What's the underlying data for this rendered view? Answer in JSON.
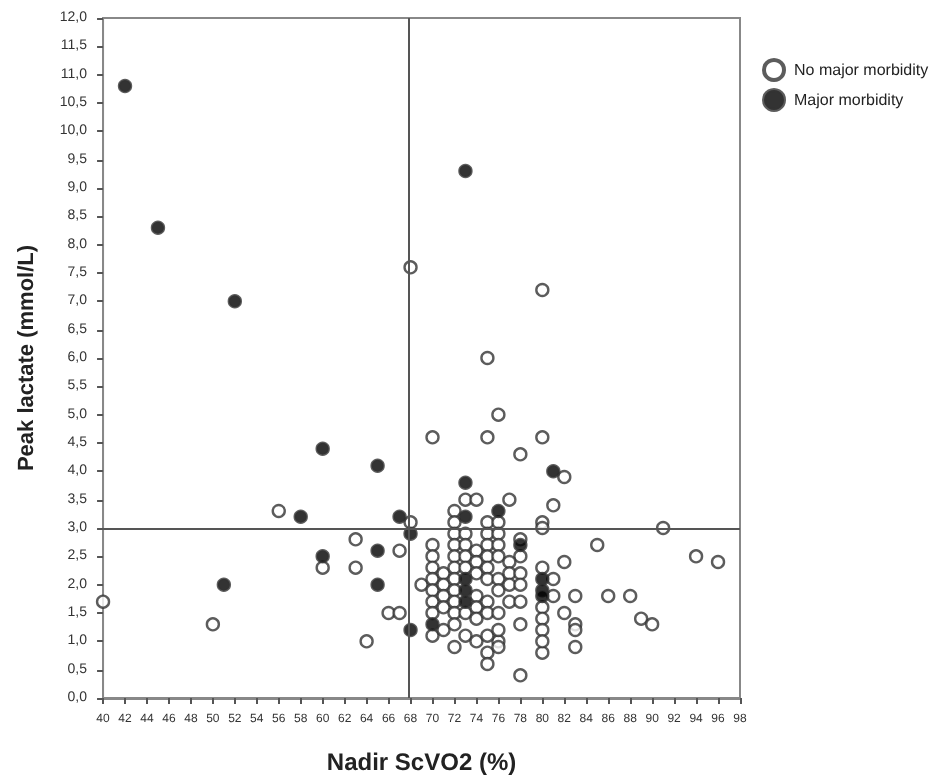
{
  "chart_data": {
    "type": "scatter",
    "xlabel": "Nadir ScVO2 (%)",
    "ylabel": "Peak lactate (mmol/L)",
    "xlim": [
      40,
      98
    ],
    "xticks": [
      40,
      42,
      44,
      46,
      48,
      50,
      52,
      54,
      56,
      58,
      60,
      62,
      64,
      66,
      68,
      70,
      72,
      74,
      76,
      78,
      80,
      82,
      84,
      86,
      88,
      90,
      92,
      94,
      96,
      98
    ],
    "ylim": [
      0,
      12
    ],
    "yticks": [
      {
        "value": 0,
        "label": "0,0"
      },
      {
        "value": 0.5,
        "label": "0,5"
      },
      {
        "value": 1,
        "label": "1,0"
      },
      {
        "value": 1.5,
        "label": "1,5"
      },
      {
        "value": 2,
        "label": "2,0"
      },
      {
        "value": 2.5,
        "label": "2,5"
      },
      {
        "value": 3,
        "label": "3,0"
      },
      {
        "value": 3.5,
        "label": "3,5"
      },
      {
        "value": 4,
        "label": "4,0"
      },
      {
        "value": 4.5,
        "label": "4,5"
      },
      {
        "value": 5,
        "label": "5,0"
      },
      {
        "value": 5.5,
        "label": "5,5"
      },
      {
        "value": 6,
        "label": "6,0"
      },
      {
        "value": 6.5,
        "label": "6,5"
      },
      {
        "value": 7,
        "label": "7,0"
      },
      {
        "value": 7.5,
        "label": "7,5"
      },
      {
        "value": 8,
        "label": "8,0"
      },
      {
        "value": 8.5,
        "label": "8,5"
      },
      {
        "value": 9,
        "label": "9,0"
      },
      {
        "value": 9.5,
        "label": "9,5"
      },
      {
        "value": 10,
        "label": "10,0"
      },
      {
        "value": 10.5,
        "label": "10,5"
      },
      {
        "value": 11,
        "label": "11,0"
      },
      {
        "value": 11.5,
        "label": "11,5"
      },
      {
        "value": 12,
        "label": "12,0"
      }
    ],
    "grid": false,
    "legend": "top right",
    "marker": "circle",
    "ref_lines": [
      {
        "axis": "x",
        "value": 67.8,
        "color": "#555555"
      },
      {
        "axis": "y",
        "value": 3.0,
        "color": "#555555"
      }
    ],
    "series": [
      {
        "name": "No major morbidity",
        "color": "#ffffff",
        "x": [
          68,
          80,
          75,
          76,
          70,
          75,
          80,
          78,
          82,
          73,
          74,
          77,
          56,
          68,
          63,
          67,
          60,
          63,
          69,
          40,
          66,
          67,
          50,
          64,
          81,
          80,
          80,
          91,
          85,
          78,
          78,
          94,
          96,
          82,
          80,
          83,
          86,
          88,
          89,
          90,
          82,
          83,
          83,
          83,
          80,
          78,
          78,
          75,
          75,
          76,
          76,
          70,
          70,
          70,
          70,
          70,
          70,
          70,
          70,
          71,
          71,
          71,
          71,
          71,
          72,
          72,
          72,
          72,
          72,
          72,
          72,
          72,
          72,
          72,
          72,
          72,
          73,
          73,
          73,
          73,
          73,
          73,
          74,
          74,
          74,
          74,
          74,
          74,
          74,
          75,
          75,
          75,
          75,
          75,
          75,
          75,
          75,
          75,
          76,
          76,
          76,
          76,
          76,
          76,
          76,
          76,
          77,
          77,
          77,
          77,
          78,
          78,
          78,
          80,
          80,
          80,
          80,
          81,
          81
        ],
        "values": [
          7.6,
          7.2,
          6.0,
          5.0,
          4.6,
          4.6,
          4.6,
          4.3,
          3.9,
          3.5,
          3.5,
          3.5,
          3.3,
          3.1,
          2.8,
          2.6,
          2.3,
          2.3,
          2.0,
          1.7,
          1.5,
          1.5,
          1.3,
          1.0,
          3.4,
          3.1,
          3.0,
          3.0,
          2.7,
          2.8,
          2.5,
          2.5,
          2.4,
          2.4,
          2.3,
          1.8,
          1.8,
          1.8,
          1.4,
          1.3,
          1.5,
          1.3,
          1.2,
          0.9,
          0.8,
          1.3,
          0.4,
          0.8,
          0.6,
          1.0,
          0.9,
          2.7,
          2.5,
          2.3,
          2.1,
          1.9,
          1.7,
          1.5,
          1.1,
          2.2,
          2.0,
          1.8,
          1.6,
          1.2,
          3.3,
          3.1,
          2.9,
          2.7,
          2.5,
          2.3,
          2.1,
          1.9,
          1.7,
          1.5,
          1.3,
          0.9,
          2.9,
          2.7,
          2.5,
          2.3,
          1.5,
          1.1,
          2.6,
          2.4,
          2.2,
          1.8,
          1.6,
          1.4,
          1.0,
          3.1,
          2.9,
          2.7,
          2.5,
          2.3,
          2.1,
          1.7,
          1.5,
          1.1,
          3.1,
          2.9,
          2.7,
          2.5,
          2.1,
          1.9,
          1.5,
          1.2,
          2.4,
          2.2,
          2.0,
          1.7,
          2.2,
          2.0,
          1.7,
          1.6,
          1.4,
          1.2,
          1.0,
          2.1,
          1.8
        ]
      },
      {
        "name": "Major morbidity",
        "color": "#000000",
        "x": [
          42,
          45,
          52,
          73,
          60,
          65,
          73,
          81,
          58,
          67,
          73,
          76,
          68,
          65,
          60,
          51,
          65,
          68,
          70,
          73,
          73,
          73,
          80,
          80,
          80,
          78
        ],
        "values": [
          10.8,
          8.3,
          7.0,
          9.3,
          4.4,
          4.1,
          3.8,
          4.0,
          3.2,
          3.2,
          3.2,
          3.3,
          2.9,
          2.6,
          2.5,
          2.0,
          2.0,
          1.2,
          1.3,
          2.1,
          1.9,
          1.7,
          2.1,
          1.9,
          1.8,
          2.7
        ]
      }
    ]
  }
}
